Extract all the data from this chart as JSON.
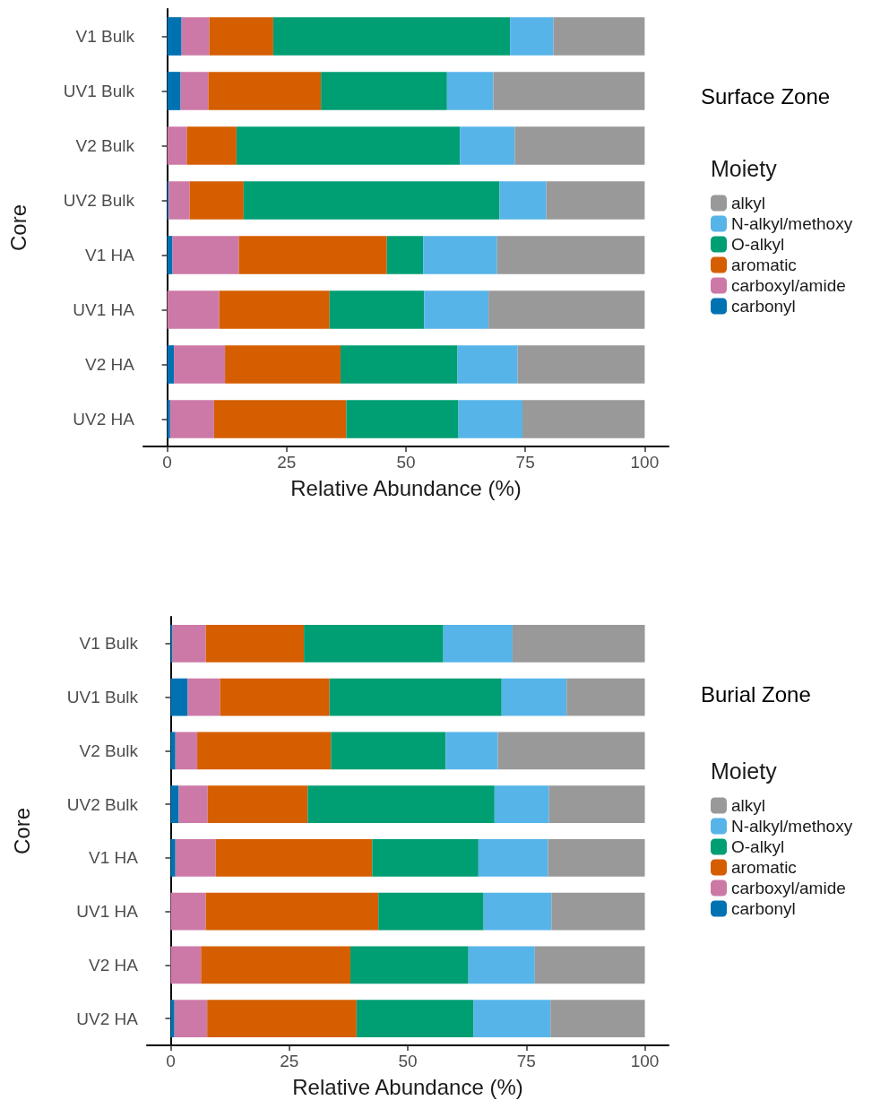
{
  "chart_data": [
    {
      "type": "bar",
      "orientation": "horizontal",
      "stacked": true,
      "annotations": [
        "Surface Zone"
      ],
      "legend_title": "Moiety",
      "legend": "right",
      "xlabel": "Relative Abundance (%)",
      "ylabel": "Core",
      "grid": false,
      "categories": [
        "V1 Bulk",
        "UV1 Bulk",
        "V2 Bulk",
        "UV2 Bulk",
        "V1 HA",
        "UV1 HA",
        "V2 HA",
        "UV2 HA"
      ],
      "xlim": [
        -5,
        105
      ],
      "xticks": [
        0,
        25,
        50,
        75,
        100
      ],
      "series": [
        {
          "name": "carbonyl",
          "color": "#0072b2",
          "values": [
            3.0,
            2.8,
            0,
            0.3,
            1.1,
            0,
            1.4,
            0.6
          ]
        },
        {
          "name": "carboxyl/amide",
          "color": "#cc79a7",
          "values": [
            5.8,
            5.8,
            4.1,
            4.4,
            13.9,
            10.9,
            10.7,
            9.2
          ]
        },
        {
          "name": "aromatic",
          "color": "#d55e00",
          "values": [
            13.4,
            23.6,
            10.4,
            11.3,
            31.0,
            23.1,
            24.2,
            27.7
          ]
        },
        {
          "name": "O-alkyl",
          "color": "#009e73",
          "values": [
            49.6,
            26.4,
            46.8,
            53.6,
            7.6,
            19.8,
            24.5,
            23.5
          ]
        },
        {
          "name": "N-alkyl/methoxy",
          "color": "#56b4e9",
          "values": [
            9.1,
            9.7,
            11.5,
            9.8,
            15.5,
            13.5,
            12.6,
            13.4
          ]
        },
        {
          "name": "alkyl",
          "color": "#999999",
          "values": [
            19.1,
            31.7,
            27.2,
            20.6,
            30.9,
            32.7,
            26.6,
            25.6
          ]
        }
      ]
    },
    {
      "type": "bar",
      "orientation": "horizontal",
      "stacked": true,
      "annotations": [
        "Burial Zone"
      ],
      "legend_title": "Moiety",
      "legend": "right",
      "xlabel": "Relative Abundance (%)",
      "ylabel": "Core",
      "grid": false,
      "categories": [
        "V1 Bulk",
        "UV1 Bulk",
        "V2 Bulk",
        "UV2 Bulk",
        "V1 HA",
        "UV1 HA",
        "V2 HA",
        "UV2 HA"
      ],
      "xlim": [
        -5,
        105
      ],
      "xticks": [
        0,
        25,
        50,
        75,
        100
      ],
      "series": [
        {
          "name": "carbonyl",
          "color": "#0072b2",
          "values": [
            0.4,
            3.6,
            1.0,
            1.7,
            1.0,
            0,
            0,
            0.8
          ]
        },
        {
          "name": "carboxyl/amide",
          "color": "#cc79a7",
          "values": [
            7.0,
            6.8,
            4.6,
            6.1,
            8.5,
            7.4,
            6.4,
            6.9
          ]
        },
        {
          "name": "aromatic",
          "color": "#d55e00",
          "values": [
            20.7,
            23.1,
            28.2,
            21.1,
            33.0,
            36.4,
            31.5,
            31.5
          ]
        },
        {
          "name": "O-alkyl",
          "color": "#009e73",
          "values": [
            29.4,
            36.3,
            24.2,
            39.4,
            22.4,
            22.2,
            24.9,
            24.7
          ]
        },
        {
          "name": "N-alkyl/methoxy",
          "color": "#56b4e9",
          "values": [
            14.6,
            13.7,
            11.0,
            11.5,
            14.7,
            14.3,
            14.0,
            16.2
          ]
        },
        {
          "name": "alkyl",
          "color": "#999999",
          "values": [
            27.9,
            16.5,
            31.0,
            20.2,
            20.4,
            19.7,
            23.2,
            19.9
          ]
        }
      ]
    }
  ]
}
